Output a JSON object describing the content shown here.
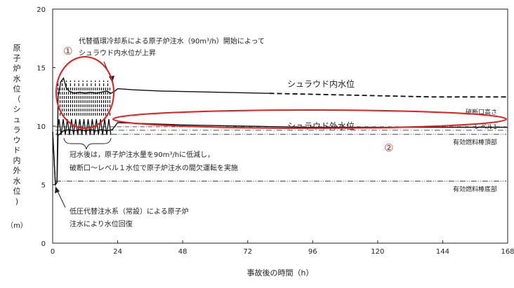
{
  "chart_data": {
    "type": "line",
    "title": "",
    "xlabel": "事故後の時間（h）",
    "ylabel": [
      "原",
      "子",
      "炉",
      "水",
      "位",
      "（",
      "シ",
      "ュ",
      "ラ",
      "ウ",
      "ド",
      "内",
      "外",
      "水",
      "位",
      ")"
    ],
    "yunit": "（m）",
    "xlim": [
      0,
      168
    ],
    "ylim": [
      0,
      20
    ],
    "xticks": [
      0,
      24,
      48,
      72,
      96,
      120,
      144,
      168
    ],
    "yticks": [
      0,
      5,
      10,
      15,
      20
    ],
    "series": [
      {
        "name": "シュラウド内水位",
        "x": [
          0,
          1,
          1.6,
          2,
          3,
          4,
          5,
          6,
          8,
          10,
          12,
          14,
          16,
          18,
          20,
          21.5,
          23,
          24,
          30,
          40,
          60,
          80,
          100,
          120,
          140,
          168
        ],
        "y": [
          9.5,
          5,
          5.2,
          12.5,
          13.8,
          14.1,
          13.3,
          13.0,
          12.8,
          12.9,
          12.8,
          12.9,
          12.8,
          12.9,
          13.0,
          12.8,
          13.0,
          13.2,
          13.1,
          13.0,
          12.9,
          12.8,
          12.7,
          12.6,
          12.5,
          12.5
        ]
      },
      {
        "name": "シュラウド外水位",
        "x": [
          0,
          1,
          1.6,
          2,
          4,
          6,
          8,
          10,
          12,
          14,
          16,
          18,
          20,
          22,
          24,
          48,
          96,
          168
        ],
        "y": [
          9.5,
          5,
          5.2,
          9.2,
          9.6,
          9.7,
          9.6,
          9.7,
          9.6,
          9.7,
          9.6,
          9.7,
          9.6,
          9.7,
          10.3,
          10.1,
          9.9,
          9.9
        ]
      }
    ],
    "reference_lines": [
      {
        "label": "破断口高さ",
        "y": 9.95
      },
      {
        "label": "レベル1",
        "y": 9.65
      },
      {
        "label": "有効燃料棒頂部",
        "y": 9.3
      },
      {
        "label": "有効燃料棒底部",
        "y": 5.3
      }
    ],
    "oscillation": {
      "x_start": 1.6,
      "x_end": 21.5,
      "upper": 13.0,
      "lower": 9.25,
      "cycles": 13
    },
    "annotations": [
      {
        "id": "replace",
        "lines": [
          "代替循環冷却系による原子炉注水（90m³/h）開始によって",
          "シュラウド内水位が上昇"
        ]
      },
      {
        "id": "inner-label",
        "text": "シュラウド内水位"
      },
      {
        "id": "outer-label",
        "text": "シュラウド外水位"
      },
      {
        "id": "flood",
        "lines": [
          "冠水後は，原子炉注水量を90m³/hに低減し，",
          "破断口～レベル１水位で原子炉注水の間欠運転を実施"
        ]
      },
      {
        "id": "lowpress",
        "lines": [
          "低圧代替注水系（常設）による原子炉",
          "注水により水位回復"
        ]
      }
    ],
    "markers": [
      "①",
      "②"
    ],
    "grid": false,
    "legend": "none"
  }
}
